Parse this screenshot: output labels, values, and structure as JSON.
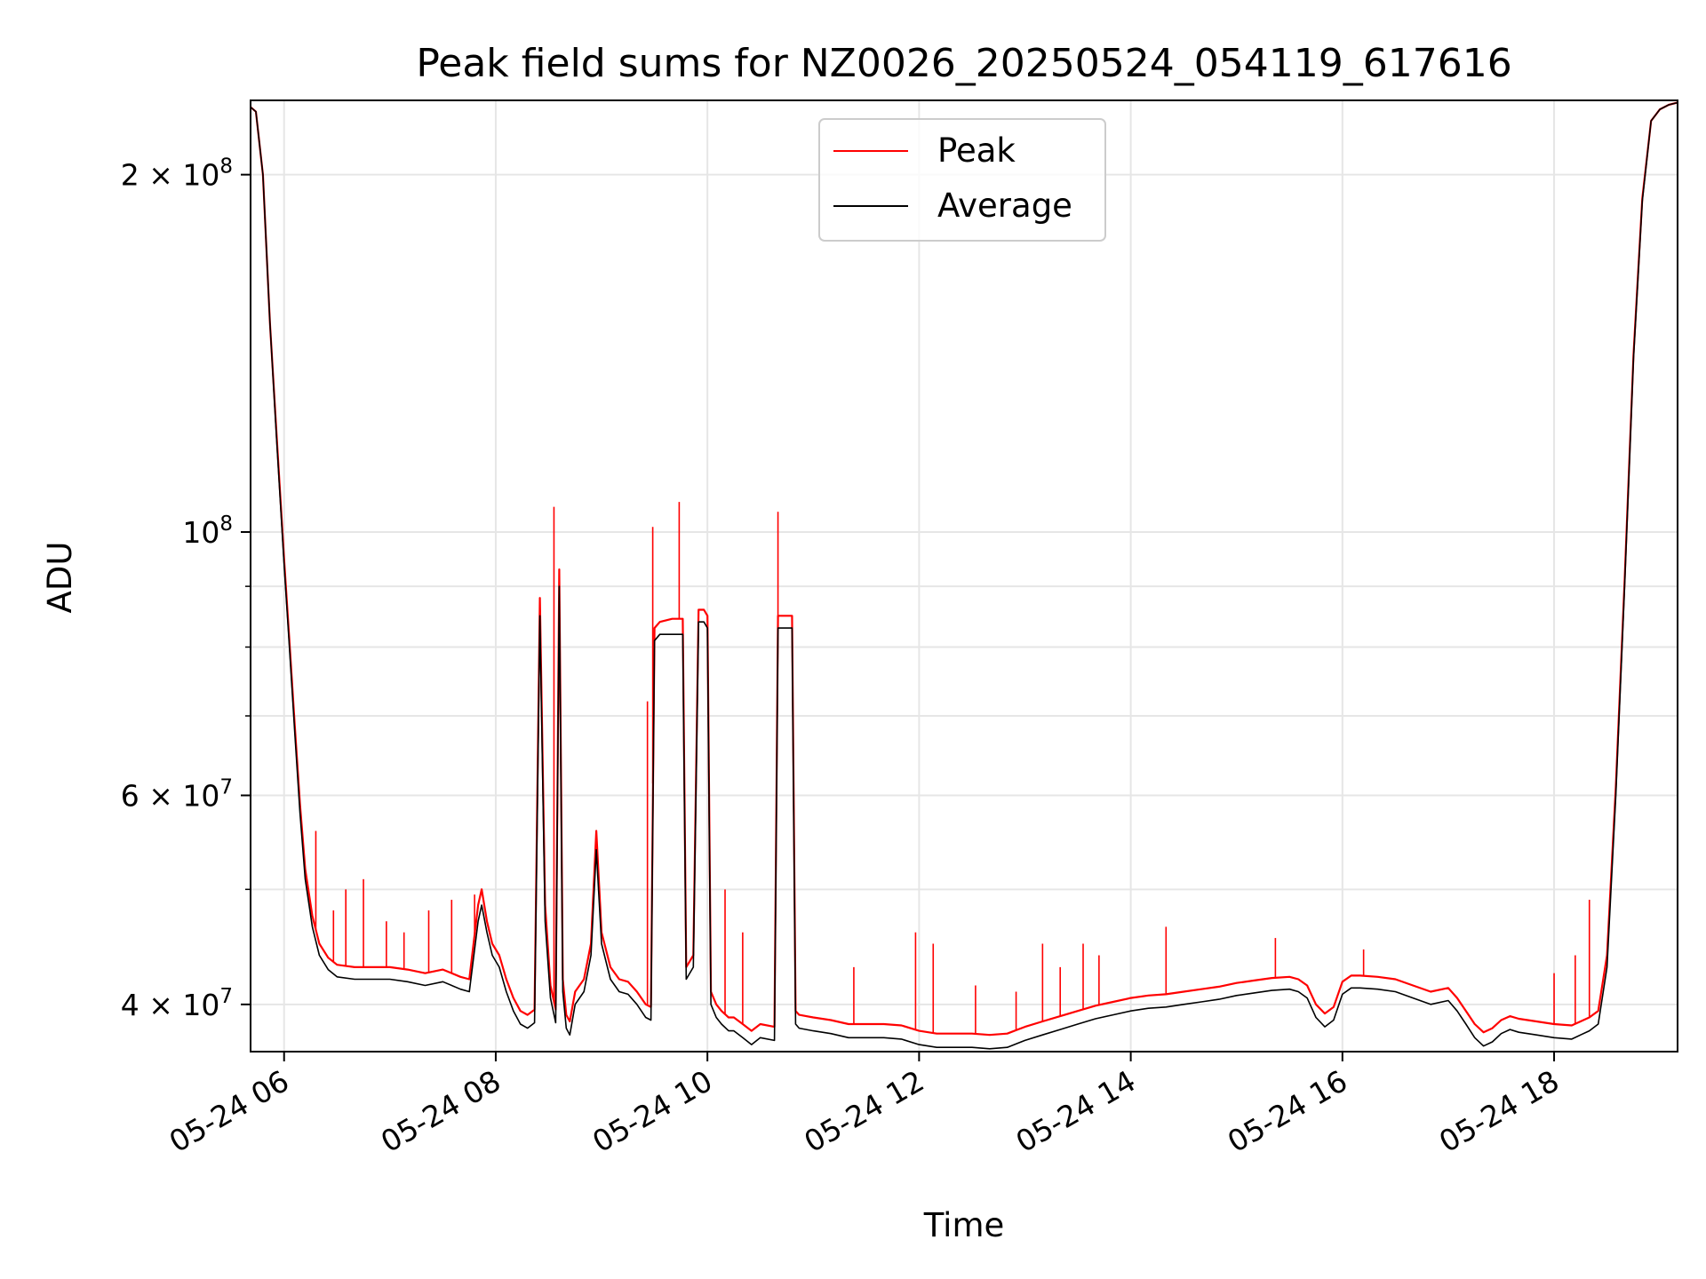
{
  "chart_data": {
    "type": "line",
    "title": "Peak field sums for NZ0026_20250524_054119_617616",
    "xlabel": "Time",
    "ylabel": "ADU",
    "xlim": [
      "2025-05-24 05:41",
      "2025-05-24 19:10"
    ],
    "ylim": [
      36500000,
      231000000
    ],
    "y_scale": "log",
    "grid": true,
    "legend_position": "top-center",
    "x_ticks": [
      {
        "value": "2025-05-24 06:00",
        "label": "05-24 06"
      },
      {
        "value": "2025-05-24 08:00",
        "label": "05-24 08"
      },
      {
        "value": "2025-05-24 10:00",
        "label": "05-24 10"
      },
      {
        "value": "2025-05-24 12:00",
        "label": "05-24 12"
      },
      {
        "value": "2025-05-24 14:00",
        "label": "05-24 14"
      },
      {
        "value": "2025-05-24 16:00",
        "label": "05-24 16"
      },
      {
        "value": "2025-05-24 18:00",
        "label": "05-24 18"
      }
    ],
    "y_ticks": [
      {
        "value": 40000000,
        "base": "4",
        "exp": "7"
      },
      {
        "value": 60000000,
        "base": "6",
        "exp": "7"
      },
      {
        "value": 100000000,
        "base": "",
        "exp": "8"
      },
      {
        "value": 200000000,
        "base": "2",
        "exp": "8"
      }
    ],
    "y_minor_ticks": [
      50000000,
      70000000,
      80000000,
      90000000
    ],
    "series": [
      {
        "name": "Average",
        "color": "#000000",
        "x": [
          "05:41",
          "05:44",
          "05:48",
          "05:52",
          "05:56",
          "06:00",
          "06:03",
          "06:06",
          "06:09",
          "06:12",
          "06:16",
          "06:20",
          "06:25",
          "06:30",
          "06:40",
          "06:50",
          "07:00",
          "07:10",
          "07:20",
          "07:30",
          "07:40",
          "07:45",
          "07:50",
          "07:52",
          "07:55",
          "07:58",
          "08:02",
          "08:06",
          "08:10",
          "08:14",
          "08:18",
          "08:22",
          "08:25",
          "08:28",
          "08:31",
          "08:34",
          "08:36",
          "08:38",
          "08:40",
          "08:42",
          "08:45",
          "08:50",
          "08:54",
          "08:57",
          "09:00",
          "09:05",
          "09:10",
          "09:15",
          "09:20",
          "09:25",
          "09:28",
          "09:30",
          "09:33",
          "09:40",
          "09:46",
          "09:48",
          "09:52",
          "09:55",
          "09:58",
          "10:00",
          "10:02",
          "10:05",
          "10:08",
          "10:12",
          "10:15",
          "10:20",
          "10:25",
          "10:30",
          "10:38",
          "10:40",
          "10:45",
          "10:48",
          "10:50",
          "10:52",
          "11:00",
          "11:10",
          "11:20",
          "11:30",
          "11:40",
          "11:50",
          "12:00",
          "12:10",
          "12:20",
          "12:30",
          "12:40",
          "12:50",
          "13:00",
          "13:10",
          "13:20",
          "13:30",
          "13:40",
          "13:50",
          "14:00",
          "14:10",
          "14:20",
          "14:30",
          "14:40",
          "14:50",
          "15:00",
          "15:10",
          "15:20",
          "15:30",
          "15:35",
          "15:40",
          "15:45",
          "15:50",
          "15:55",
          "16:00",
          "16:05",
          "16:10",
          "16:20",
          "16:30",
          "16:40",
          "16:50",
          "17:00",
          "17:05",
          "17:10",
          "17:15",
          "17:20",
          "17:25",
          "17:30",
          "17:35",
          "17:40",
          "17:50",
          "18:00",
          "18:10",
          "18:15",
          "18:20",
          "18:25",
          "18:30",
          "18:35",
          "18:40",
          "18:45",
          "18:50",
          "18:55",
          "19:00",
          "19:05",
          "19:10"
        ],
        "y": [
          228000000,
          226000000,
          200000000,
          150000000,
          118000000,
          94000000,
          80000000,
          68000000,
          58000000,
          51000000,
          46500000,
          44000000,
          42800000,
          42200000,
          42000000,
          42000000,
          42000000,
          41800000,
          41500000,
          41800000,
          41200000,
          41000000,
          47000000,
          48500000,
          46000000,
          44000000,
          43000000,
          41000000,
          39500000,
          38500000,
          38200000,
          38600000,
          85000000,
          47000000,
          40500000,
          38600000,
          90000000,
          41000000,
          38200000,
          37700000,
          40000000,
          41000000,
          44000000,
          54000000,
          45000000,
          42000000,
          41000000,
          40800000,
          40000000,
          39000000,
          38800000,
          81000000,
          82000000,
          82000000,
          82000000,
          42000000,
          43000000,
          84000000,
          84000000,
          83000000,
          40000000,
          39000000,
          38500000,
          38000000,
          38000000,
          37500000,
          37000000,
          37500000,
          37300000,
          83000000,
          83000000,
          83000000,
          38500000,
          38200000,
          38000000,
          37800000,
          37500000,
          37500000,
          37500000,
          37400000,
          37000000,
          36800000,
          36800000,
          36800000,
          36700000,
          36800000,
          37300000,
          37700000,
          38100000,
          38500000,
          38900000,
          39200000,
          39500000,
          39700000,
          39800000,
          40000000,
          40200000,
          40400000,
          40700000,
          40900000,
          41100000,
          41200000,
          41000000,
          40500000,
          39000000,
          38300000,
          38800000,
          40800000,
          41300000,
          41300000,
          41200000,
          41000000,
          40500000,
          40000000,
          40300000,
          39500000,
          38500000,
          37500000,
          36900000,
          37200000,
          37800000,
          38100000,
          37900000,
          37700000,
          37500000,
          37400000,
          37700000,
          38000000,
          38500000,
          43000000,
          60000000,
          90000000,
          140000000,
          190000000,
          222000000,
          227000000,
          229000000,
          230000000
        ]
      },
      {
        "name": "Peak",
        "color": "#ff0000",
        "x": [
          "05:41",
          "05:44",
          "05:48",
          "05:52",
          "05:56",
          "06:00",
          "06:03",
          "06:06",
          "06:09",
          "06:12",
          "06:16",
          "06:20",
          "06:25",
          "06:30",
          "06:40",
          "06:50",
          "07:00",
          "07:10",
          "07:20",
          "07:30",
          "07:40",
          "07:45",
          "07:50",
          "07:52",
          "07:55",
          "07:58",
          "08:02",
          "08:06",
          "08:10",
          "08:14",
          "08:18",
          "08:22",
          "08:25",
          "08:28",
          "08:31",
          "08:34",
          "08:36",
          "08:38",
          "08:40",
          "08:42",
          "08:45",
          "08:50",
          "08:54",
          "08:57",
          "09:00",
          "09:05",
          "09:10",
          "09:15",
          "09:20",
          "09:25",
          "09:28",
          "09:30",
          "09:33",
          "09:40",
          "09:46",
          "09:48",
          "09:52",
          "09:55",
          "09:58",
          "10:00",
          "10:02",
          "10:05",
          "10:08",
          "10:12",
          "10:15",
          "10:20",
          "10:25",
          "10:30",
          "10:38",
          "10:40",
          "10:45",
          "10:48",
          "10:50",
          "10:52",
          "11:00",
          "11:10",
          "11:20",
          "11:30",
          "11:40",
          "11:50",
          "12:00",
          "12:10",
          "12:20",
          "12:30",
          "12:40",
          "12:50",
          "13:00",
          "13:10",
          "13:20",
          "13:30",
          "13:40",
          "13:50",
          "14:00",
          "14:10",
          "14:20",
          "14:30",
          "14:40",
          "14:50",
          "15:00",
          "15:10",
          "15:20",
          "15:30",
          "15:35",
          "15:40",
          "15:45",
          "15:50",
          "15:55",
          "16:00",
          "16:05",
          "16:10",
          "16:20",
          "16:30",
          "16:40",
          "16:50",
          "17:00",
          "17:05",
          "17:10",
          "17:15",
          "17:20",
          "17:25",
          "17:30",
          "17:35",
          "17:40",
          "17:50",
          "18:00",
          "18:10",
          "18:15",
          "18:20",
          "18:25",
          "18:30",
          "18:35",
          "18:40",
          "18:45",
          "18:50",
          "18:55",
          "19:00",
          "19:05",
          "19:10"
        ],
        "y": [
          228000000,
          226000000,
          200000000,
          150000000,
          119000000,
          95000000,
          81000000,
          69000000,
          59000000,
          52000000,
          47500000,
          45000000,
          43800000,
          43200000,
          43000000,
          43000000,
          43000000,
          42800000,
          42500000,
          42800000,
          42200000,
          42000000,
          48500000,
          50000000,
          47000000,
          45000000,
          44000000,
          42000000,
          40500000,
          39500000,
          39200000,
          39600000,
          88000000,
          48500000,
          41500000,
          39600000,
          93000000,
          42000000,
          39200000,
          38700000,
          41000000,
          42000000,
          45000000,
          56000000,
          46000000,
          43000000,
          42000000,
          41800000,
          41000000,
          40000000,
          39800000,
          83000000,
          84000000,
          84500000,
          84500000,
          43000000,
          44000000,
          86000000,
          86000000,
          85000000,
          41000000,
          40000000,
          39500000,
          39000000,
          39000000,
          38500000,
          38000000,
          38500000,
          38300000,
          85000000,
          85000000,
          85000000,
          39500000,
          39200000,
          39000000,
          38800000,
          38500000,
          38500000,
          38500000,
          38400000,
          38000000,
          37800000,
          37800000,
          37800000,
          37700000,
          37800000,
          38300000,
          38700000,
          39100000,
          39500000,
          39900000,
          40200000,
          40500000,
          40700000,
          40800000,
          41000000,
          41200000,
          41400000,
          41700000,
          41900000,
          42100000,
          42200000,
          42000000,
          41500000,
          40000000,
          39300000,
          39800000,
          41800000,
          42300000,
          42300000,
          42200000,
          42000000,
          41500000,
          41000000,
          41300000,
          40500000,
          39500000,
          38500000,
          37900000,
          38200000,
          38800000,
          39100000,
          38900000,
          38700000,
          38500000,
          38400000,
          38700000,
          39000000,
          39500000,
          44000000,
          61000000,
          91000000,
          141000000,
          191000000,
          222000000,
          227000000,
          229000000,
          230000000
        ],
        "spikes": [
          {
            "x": "06:18",
            "y": 56000000
          },
          {
            "x": "06:28",
            "y": 48000000
          },
          {
            "x": "06:35",
            "y": 50000000
          },
          {
            "x": "06:45",
            "y": 51000000
          },
          {
            "x": "06:58",
            "y": 47000000
          },
          {
            "x": "07:08",
            "y": 46000000
          },
          {
            "x": "07:22",
            "y": 48000000
          },
          {
            "x": "07:35",
            "y": 49000000
          },
          {
            "x": "07:48",
            "y": 49500000
          },
          {
            "x": "08:33",
            "y": 105000000
          },
          {
            "x": "09:26",
            "y": 72000000
          },
          {
            "x": "09:29",
            "y": 101000000
          },
          {
            "x": "09:44",
            "y": 106000000
          },
          {
            "x": "10:10",
            "y": 50000000
          },
          {
            "x": "10:20",
            "y": 46000000
          },
          {
            "x": "10:40",
            "y": 104000000
          },
          {
            "x": "11:23",
            "y": 43000000
          },
          {
            "x": "11:58",
            "y": 46000000
          },
          {
            "x": "12:08",
            "y": 45000000
          },
          {
            "x": "12:32",
            "y": 41500000
          },
          {
            "x": "12:55",
            "y": 41000000
          },
          {
            "x": "13:10",
            "y": 45000000
          },
          {
            "x": "13:20",
            "y": 43000000
          },
          {
            "x": "13:33",
            "y": 45000000
          },
          {
            "x": "13:42",
            "y": 44000000
          },
          {
            "x": "14:20",
            "y": 46500000
          },
          {
            "x": "15:22",
            "y": 45500000
          },
          {
            "x": "16:12",
            "y": 44500000
          },
          {
            "x": "18:00",
            "y": 42500000
          },
          {
            "x": "18:12",
            "y": 44000000
          },
          {
            "x": "18:20",
            "y": 49000000
          }
        ]
      }
    ],
    "legend": [
      {
        "label": "Peak",
        "color": "#ff0000"
      },
      {
        "label": "Average",
        "color": "#000000"
      }
    ]
  }
}
